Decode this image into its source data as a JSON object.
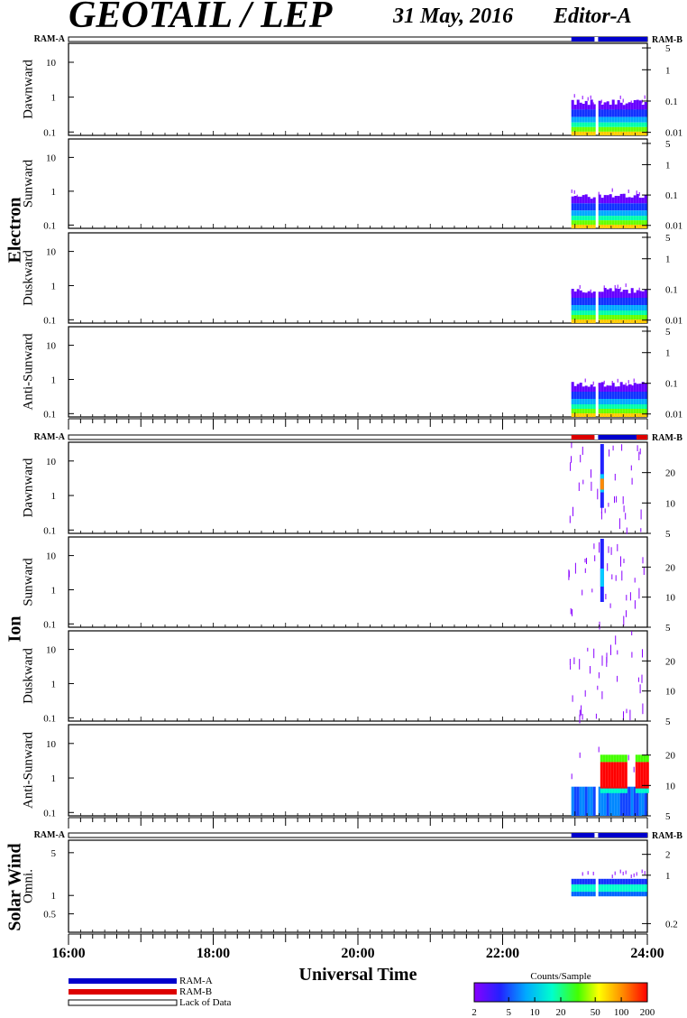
{
  "header": {
    "title": "GEOTAIL / LEP",
    "date": "31 May, 2016",
    "editor": "Editor-A"
  },
  "chart_data": {
    "type": "heatmap",
    "xlabel": "Universal Time",
    "x_ticks": [
      "16:00",
      "18:00",
      "20:00",
      "22:00",
      "24:00"
    ],
    "x_range_hours": [
      16,
      24
    ],
    "data_start_hour": 22.95,
    "data_gaps_hours": [
      [
        23.27,
        23.32
      ]
    ],
    "ram_labels": {
      "left": "RAM-A",
      "right": "RAM-B"
    },
    "groups": [
      {
        "name": "Electron",
        "ram_bar": [
          {
            "from": 22.95,
            "to": 24,
            "mode": "RAM-A"
          }
        ],
        "panels": [
          {
            "label": "Dawnward",
            "left_ticks": [
              "10",
              "1",
              "0.1"
            ],
            "right_ticks": [
              "5",
              "1",
              "0.1",
              "0.01"
            ]
          },
          {
            "label": "Sunward",
            "left_ticks": [
              "10",
              "1",
              "0.1"
            ],
            "right_ticks": [
              "5",
              "1",
              "0.1",
              "0.01"
            ]
          },
          {
            "label": "Duskward",
            "left_ticks": [
              "10",
              "1",
              "0.1"
            ],
            "right_ticks": [
              "5",
              "1",
              "0.1",
              "0.01"
            ]
          },
          {
            "label": "Anti-Sunward",
            "left_ticks": [
              "10",
              "1",
              "0.1"
            ],
            "right_ticks": [
              "5",
              "1",
              "0.1",
              "0.01"
            ]
          }
        ]
      },
      {
        "name": "Ion",
        "ram_bar": [
          {
            "from": 22.95,
            "to": 23.3,
            "mode": "RAM-B"
          },
          {
            "from": 23.3,
            "to": 23.85,
            "mode": "RAM-A"
          },
          {
            "from": 23.85,
            "to": 24,
            "mode": "RAM-B"
          }
        ],
        "panels": [
          {
            "label": "Dawnward",
            "left_ticks": [
              "10",
              "1",
              "0.1"
            ],
            "right_ticks": [
              "20",
              "10",
              "5"
            ]
          },
          {
            "label": "Sunward",
            "left_ticks": [
              "10",
              "1",
              "0.1"
            ],
            "right_ticks": [
              "20",
              "10",
              "5"
            ]
          },
          {
            "label": "Duskward",
            "left_ticks": [
              "10",
              "1",
              "0.1"
            ],
            "right_ticks": [
              "20",
              "10",
              "5"
            ]
          },
          {
            "label": "Anti-Sunward",
            "left_ticks": [
              "10",
              "1",
              "0.1"
            ],
            "right_ticks": [
              "20",
              "10",
              "5"
            ]
          }
        ]
      },
      {
        "name": "Solar Wind",
        "ram_bar": [
          {
            "from": 22.95,
            "to": 24,
            "mode": "RAM-A"
          }
        ],
        "panels": [
          {
            "label": "Omni.",
            "left_ticks": [
              "5",
              "1",
              "0.5"
            ],
            "right_ticks": [
              "2",
              "1",
              "0.2"
            ]
          }
        ]
      }
    ],
    "legend": [
      {
        "label": "RAM-A",
        "color": "#0000cc"
      },
      {
        "label": "RAM-B",
        "color": "#dd0000"
      },
      {
        "label": "Lack of Data",
        "color": "#ffffff"
      }
    ],
    "colorbar": {
      "title": "Counts/Sample",
      "ticks": [
        "2",
        "5",
        "10",
        "20",
        "50",
        "100",
        "200"
      ],
      "colors": [
        "#8800ff",
        "#2222ff",
        "#00aaff",
        "#00ffcc",
        "#44ff00",
        "#ffff00",
        "#ff8800",
        "#ff0000"
      ]
    }
  }
}
